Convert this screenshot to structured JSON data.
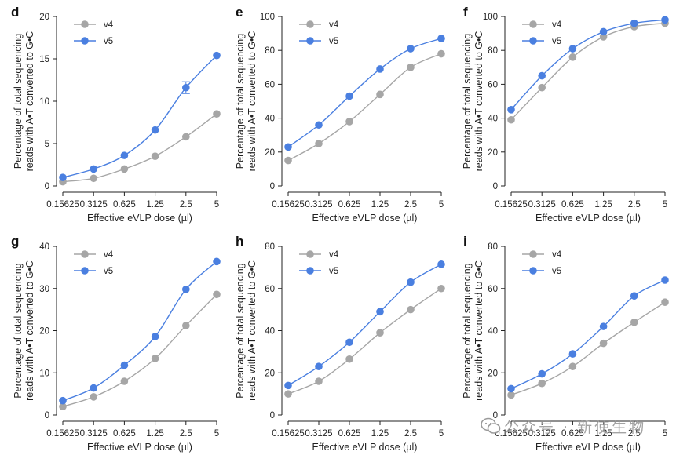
{
  "colors": {
    "v4": "#a6a6a6",
    "v5": "#4a7fe0",
    "axis": "#222222"
  },
  "watermark": {
    "text": "公众号 · 新使生物",
    "icon": "wechat-icon"
  },
  "chart_data": [
    {
      "panel": "d",
      "type": "line",
      "x": [
        "0.15625",
        "0.3125",
        "0.625",
        "1.25",
        "2.5",
        "5"
      ],
      "xlabel": "Effective eVLP dose (µl)",
      "ylabel": [
        "Percentage of total sequencing",
        "reads with A•T converted to G•C"
      ],
      "ylim": [
        0,
        20
      ],
      "yticks": [
        "0",
        "5",
        "10",
        "15",
        "20"
      ],
      "legend": "top-left",
      "series": [
        {
          "name": "v4",
          "values": [
            0.5,
            0.9,
            2.0,
            3.5,
            5.8,
            8.5
          ]
        },
        {
          "name": "v5",
          "values": [
            1.0,
            2.0,
            3.6,
            6.6,
            11.6,
            15.4
          ]
        }
      ],
      "error_bars": {
        "v5": [
          null,
          null,
          null,
          null,
          0.7,
          null
        ]
      }
    },
    {
      "panel": "e",
      "type": "line",
      "x": [
        "0.15625",
        "0.3125",
        "0.625",
        "1.25",
        "2.5",
        "5"
      ],
      "xlabel": "Effective eVLP dose (µl)",
      "ylabel": [
        "Percentage of total sequencing",
        "reads with A•T converted to G•C"
      ],
      "ylim": [
        0,
        100
      ],
      "yticks": [
        "0",
        "20",
        "40",
        "60",
        "80",
        "100"
      ],
      "legend": "top-left",
      "series": [
        {
          "name": "v4",
          "values": [
            15,
            25,
            38,
            54,
            70,
            78
          ]
        },
        {
          "name": "v5",
          "values": [
            23,
            36,
            53,
            69,
            81,
            87
          ]
        }
      ]
    },
    {
      "panel": "f",
      "type": "line",
      "x": [
        "0.15625",
        "0.3125",
        "0.625",
        "1.25",
        "2.5",
        "5"
      ],
      "xlabel": "Effective eVLP dose (µl)",
      "ylabel": [
        "Percentage of total sequencing",
        "reads with A•T converted to G•C"
      ],
      "ylim": [
        0,
        100
      ],
      "yticks": [
        "0",
        "20",
        "40",
        "60",
        "80",
        "100"
      ],
      "legend": "top-left",
      "series": [
        {
          "name": "v4",
          "values": [
            39,
            58,
            76,
            88,
            94,
            96
          ]
        },
        {
          "name": "v5",
          "values": [
            45,
            65,
            81,
            91,
            96,
            98
          ]
        }
      ]
    },
    {
      "panel": "g",
      "type": "line",
      "x": [
        "0.15625",
        "0.3125",
        "0.625",
        "1.25",
        "2.5",
        "5"
      ],
      "xlabel": "Effective eVLP dose (µl)",
      "ylabel": [
        "Percentage of total sequencing",
        "reads with A•T converted to G•C"
      ],
      "ylim": [
        0,
        40
      ],
      "yticks": [
        "0",
        "10",
        "20",
        "30",
        "40"
      ],
      "legend": "top-left",
      "series": [
        {
          "name": "v4",
          "values": [
            2.0,
            4.3,
            8.0,
            13.4,
            21.2,
            28.6
          ]
        },
        {
          "name": "v5",
          "values": [
            3.4,
            6.4,
            11.8,
            18.6,
            29.8,
            36.4
          ]
        }
      ]
    },
    {
      "panel": "h",
      "type": "line",
      "x": [
        "0.15625",
        "0.3125",
        "0.625",
        "1.25",
        "2.5",
        "5"
      ],
      "xlabel": "Effective eVLP dose (µl)",
      "ylabel": [
        "Percentage of total sequencing",
        "reads with A•T converted to G•C"
      ],
      "ylim": [
        0,
        80
      ],
      "yticks": [
        "0",
        "20",
        "40",
        "60",
        "80"
      ],
      "legend": "top-left",
      "series": [
        {
          "name": "v4",
          "values": [
            10,
            16,
            26.5,
            39,
            50,
            60
          ]
        },
        {
          "name": "v5",
          "values": [
            14,
            23,
            34.5,
            49,
            63,
            71.5
          ]
        }
      ]
    },
    {
      "panel": "i",
      "type": "line",
      "x": [
        "0.15625",
        "0.3125",
        "0.625",
        "1.25",
        "2.5",
        "5"
      ],
      "xlabel": "Effective eVLP dose (µl)",
      "ylabel": [
        "Percentage of total sequencing",
        "reads with A•T converted to G•C"
      ],
      "ylim": [
        0,
        80
      ],
      "yticks": [
        "0",
        "20",
        "40",
        "60",
        "80"
      ],
      "legend": "top-left",
      "series": [
        {
          "name": "v4",
          "values": [
            9.5,
            15,
            23,
            34,
            44,
            53.5
          ]
        },
        {
          "name": "v5",
          "values": [
            12.5,
            19.5,
            29,
            42,
            56.5,
            64
          ]
        }
      ]
    }
  ]
}
